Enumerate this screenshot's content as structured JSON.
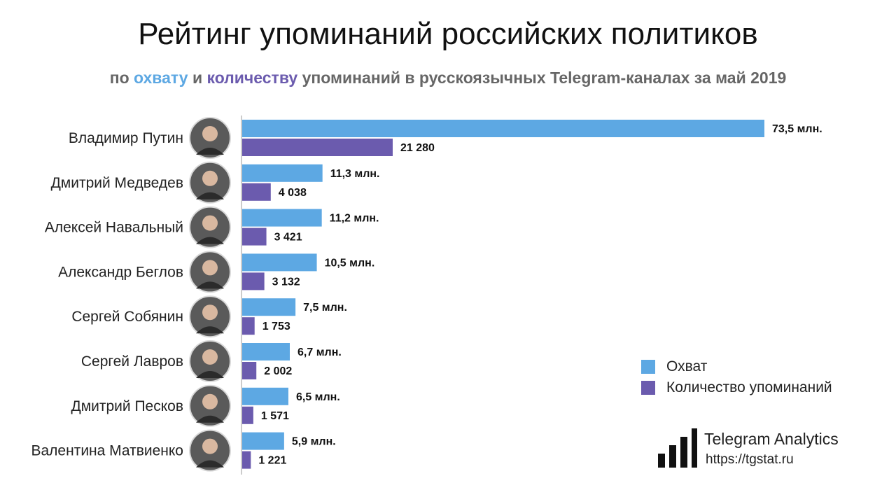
{
  "header": {
    "title": "Рейтинг упоминаний российских политиков",
    "subtitle_prefix": "по ",
    "subtitle_reach": "охвату",
    "subtitle_and": " и ",
    "subtitle_count": "количеству",
    "subtitle_suffix": " упоминаний в русскоязычных Telegram-каналах за май 2019"
  },
  "colors": {
    "reach": "#5DA8E3",
    "count": "#6B5BAE"
  },
  "chart_data": {
    "type": "bar",
    "orientation": "horizontal",
    "title": "Рейтинг упоминаний российских политиков",
    "subtitle": "по охвату и количеству упоминаний в русскоязычных Telegram-каналах за май 2019",
    "categories": [
      "Владимир Путин",
      "Дмитрий Медведев",
      "Алексей Навальный",
      "Александр Беглов",
      "Сергей Собянин",
      "Сергей Лавров",
      "Дмитрий Песков",
      "Валентина Матвиенко"
    ],
    "series": [
      {
        "name": "Охват",
        "values": [
          73.5,
          11.3,
          11.2,
          10.5,
          7.5,
          6.7,
          6.5,
          5.9
        ],
        "labels": [
          "73,5 млн.",
          "11,3 млн.",
          "11,2 млн.",
          "10,5 млн.",
          "7,5 млн.",
          "6,7 млн.",
          "6,5 млн.",
          "5,9 млн."
        ]
      },
      {
        "name": "Количество упоминаний",
        "values": [
          21280,
          4038,
          3421,
          3132,
          1753,
          2002,
          1571,
          1221
        ],
        "labels": [
          "21 280",
          "4 038",
          "3 421",
          "3 132",
          "1 753",
          "2 002",
          "1 571",
          "1 221"
        ]
      }
    ],
    "legend_position": "bottom-right",
    "grid": false
  },
  "legend": {
    "reach_label": "Охват",
    "count_label": "Количество упоминаний"
  },
  "brand": {
    "name": "Telegram Analytics",
    "url": "https://tgstat.ru"
  }
}
